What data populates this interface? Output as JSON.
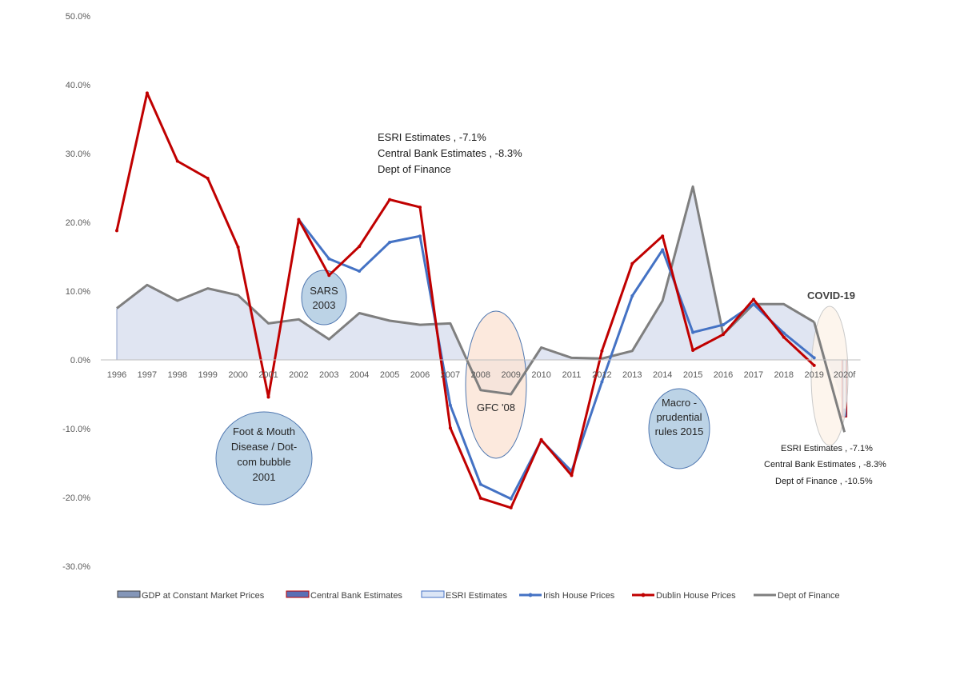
{
  "chart_data": {
    "type": "line",
    "categories": [
      "1996",
      "1997",
      "1998",
      "1999",
      "2000",
      "2001",
      "2002",
      "2003",
      "2004",
      "2005",
      "2006",
      "2007",
      "2008",
      "2009",
      "2010",
      "2011",
      "2012",
      "2013",
      "2014",
      "2015",
      "2016",
      "2017",
      "2018",
      "2019",
      "2020f"
    ],
    "ylim": [
      -30,
      50
    ],
    "yticks": [
      "50.0%",
      "40.0%",
      "30.0%",
      "20.0%",
      "10.0%",
      "0.0%",
      "-10.0%",
      "-20.0%",
      "-30.0%"
    ],
    "ytick_values": [
      50,
      40,
      30,
      20,
      10,
      0,
      -10,
      -20,
      -30
    ],
    "grid": false,
    "legend_position": "bottom",
    "series": [
      {
        "name": "GDP at Constant Market Prices",
        "kind": "area",
        "color": "#dde2f1",
        "stroke": "#8ea0c9",
        "values": [
          7.5,
          10.9,
          8.6,
          10.4,
          9.4,
          5.3,
          5.9,
          3.0,
          6.8,
          5.7,
          5.1,
          5.3,
          -4.4,
          -5.0,
          1.8,
          0.3,
          0.2,
          1.3,
          8.6,
          25.2,
          3.7,
          8.1,
          8.1,
          5.5,
          -7.1
        ]
      },
      {
        "name": "Central Bank Estimates",
        "kind": "area",
        "color": "#5b6fb5",
        "stroke": "#c00000",
        "values": [
          null,
          null,
          null,
          null,
          null,
          null,
          null,
          null,
          null,
          null,
          null,
          null,
          null,
          null,
          null,
          null,
          null,
          null,
          null,
          null,
          null,
          null,
          null,
          null,
          -8.3
        ]
      },
      {
        "name": "ESRI Estimates",
        "kind": "area",
        "color": "#dce6f6",
        "stroke": "#4472c4",
        "values": [
          null,
          null,
          null,
          null,
          null,
          null,
          null,
          null,
          null,
          null,
          null,
          null,
          null,
          null,
          null,
          null,
          null,
          null,
          null,
          null,
          null,
          null,
          null,
          null,
          -7.1
        ]
      },
      {
        "name": "Irish House Prices",
        "kind": "line",
        "color": "#4472c4",
        "values": [
          null,
          null,
          null,
          null,
          null,
          null,
          20.4,
          14.7,
          12.9,
          17.1,
          18.0,
          -6.6,
          -18.1,
          -20.2,
          -11.7,
          -16.2,
          -3.2,
          9.3,
          16.0,
          4.0,
          5.1,
          8.1,
          3.9,
          0.3,
          null
        ]
      },
      {
        "name": "Dublin House Prices",
        "kind": "line",
        "color": "#c00000",
        "values": [
          18.8,
          38.8,
          28.9,
          26.4,
          16.4,
          -5.4,
          20.4,
          12.3,
          16.5,
          23.3,
          22.2,
          -9.9,
          -20.1,
          -21.5,
          -11.6,
          -16.8,
          1.3,
          14.0,
          18.0,
          1.4,
          3.7,
          8.8,
          3.3,
          -0.8,
          null
        ]
      },
      {
        "name": "Dept of Finance",
        "kind": "line",
        "color": "#7f7f7f",
        "values": [
          null,
          null,
          null,
          null,
          null,
          null,
          null,
          null,
          null,
          null,
          null,
          null,
          null,
          null,
          null,
          null,
          null,
          null,
          null,
          null,
          null,
          null,
          null,
          5.5,
          -10.5
        ]
      }
    ],
    "annotations": {
      "top_estimates": [
        "ESRI Estimates , -7.1%",
        "Central Bank Estimates , -8.3%",
        "Dept of Finance"
      ],
      "side_estimates": [
        "ESRI Estimates , -7.1%",
        "Central Bank Estimates , -8.3%",
        "Dept of Finance , -10.5%"
      ],
      "covid": "COVID-19"
    },
    "bubbles": [
      {
        "id": "foot-mouth",
        "lines": [
          "Foot & Mouth",
          "Disease / Dot-",
          "com bubble",
          "2001"
        ],
        "fill": "#bcd3e6",
        "stroke": "#4f77b0"
      },
      {
        "id": "sars",
        "lines": [
          "SARS",
          "2003"
        ],
        "fill": "#bcd3e6",
        "stroke": "#4f77b0"
      },
      {
        "id": "gfc",
        "lines": [
          "GFC '08"
        ],
        "fill": "#fbe4d4",
        "stroke": "#4f77b0"
      },
      {
        "id": "macro",
        "lines": [
          "Macro -",
          "prudential",
          "rules 2015"
        ],
        "fill": "#bcd3e6",
        "stroke": "#4f77b0"
      },
      {
        "id": "covid",
        "lines": [],
        "fill": "#fdf2e9",
        "stroke": "#c9c9c9"
      }
    ]
  }
}
